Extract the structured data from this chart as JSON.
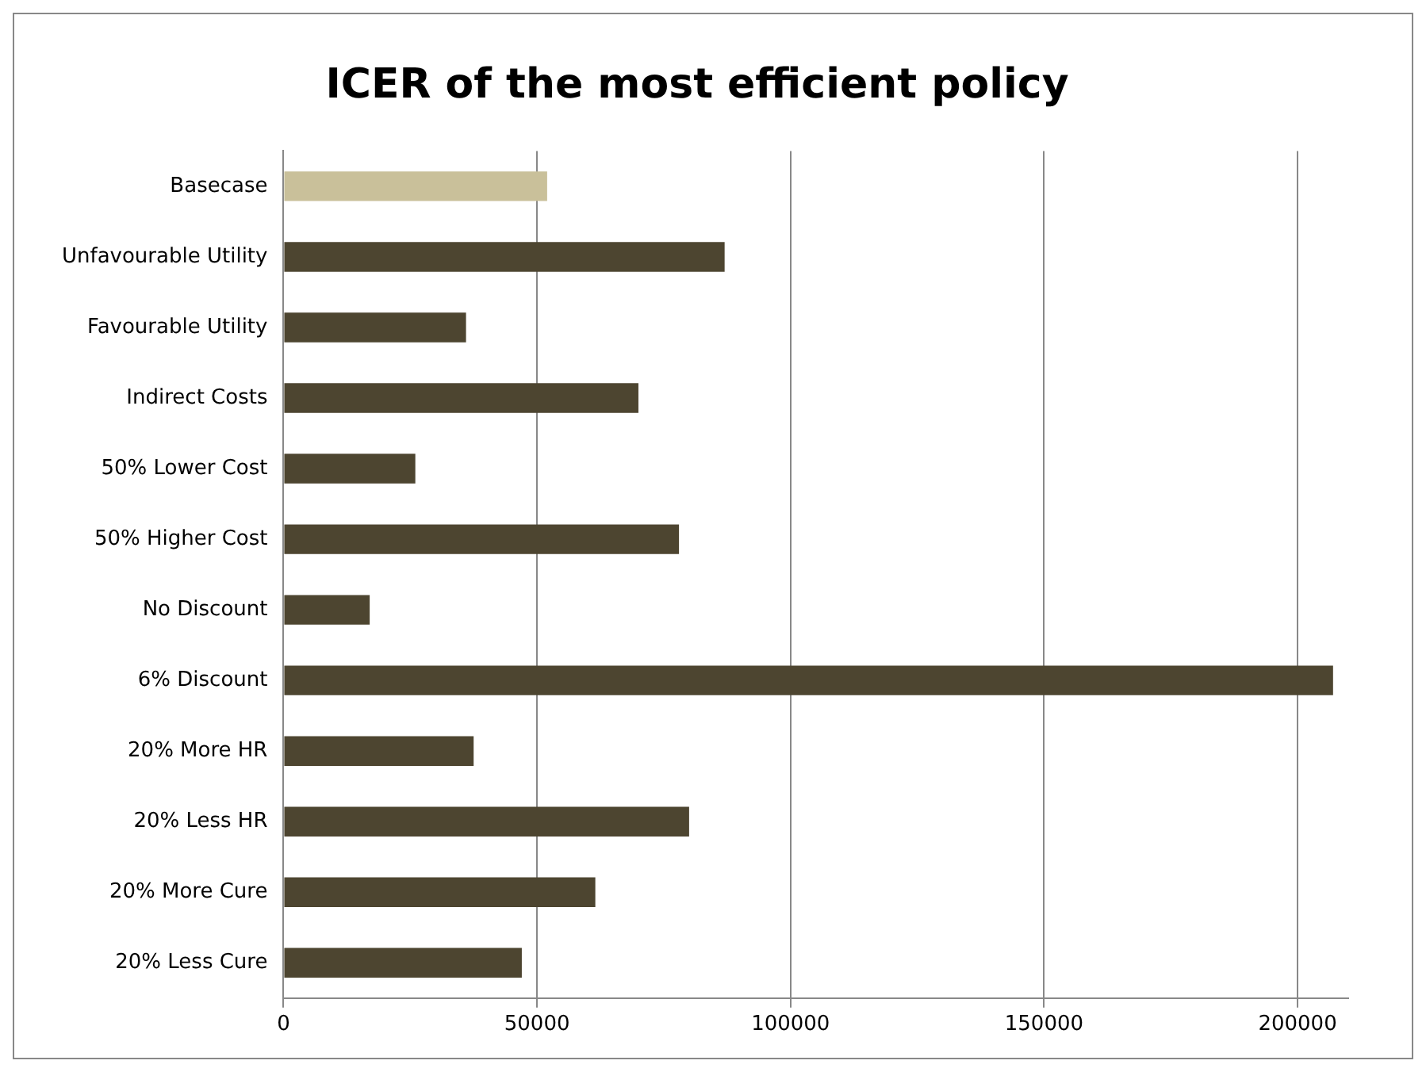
{
  "chart_data": {
    "type": "bar",
    "title": "ICER of the most efficient policy",
    "orientation": "horizontal",
    "categories": [
      "Basecase",
      "Unfavourable Utility",
      "Favourable Utility",
      "Indirect Costs",
      "50% Lower Cost",
      "50% Higher Cost",
      "No Discount",
      "6% Discount",
      "20% More HR",
      "20% Less HR",
      "20% More Cure",
      "20% Less Cure"
    ],
    "values": [
      52000,
      87000,
      36000,
      70000,
      26000,
      78000,
      17000,
      207000,
      37500,
      80000,
      61500,
      47000
    ],
    "colors": [
      "#c9c09a",
      "#4d4530",
      "#4d4530",
      "#4d4530",
      "#4d4530",
      "#4d4530",
      "#4d4530",
      "#4d4530",
      "#4d4530",
      "#4d4530",
      "#4d4530",
      "#4d4530"
    ],
    "xlim": [
      0,
      210000
    ],
    "xticks": [
      0,
      50000,
      100000,
      150000,
      200000
    ],
    "grid": "x",
    "legend": false
  }
}
